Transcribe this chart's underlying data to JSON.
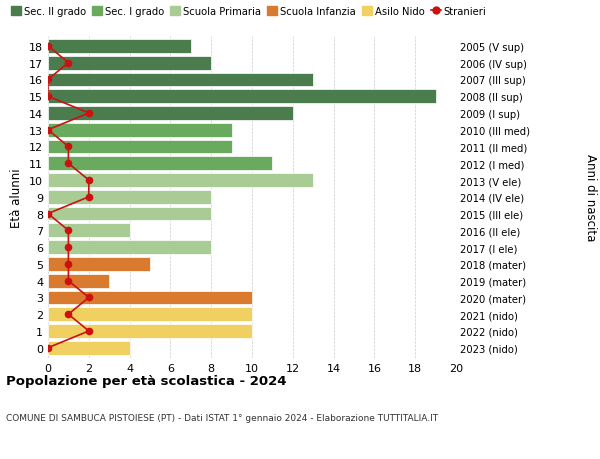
{
  "ages": [
    18,
    17,
    16,
    15,
    14,
    13,
    12,
    11,
    10,
    9,
    8,
    7,
    6,
    5,
    4,
    3,
    2,
    1,
    0
  ],
  "right_labels": [
    "2005 (V sup)",
    "2006 (IV sup)",
    "2007 (III sup)",
    "2008 (II sup)",
    "2009 (I sup)",
    "2010 (III med)",
    "2011 (II med)",
    "2012 (I med)",
    "2013 (V ele)",
    "2014 (IV ele)",
    "2015 (III ele)",
    "2016 (II ele)",
    "2017 (I ele)",
    "2018 (mater)",
    "2019 (mater)",
    "2020 (mater)",
    "2021 (nido)",
    "2022 (nido)",
    "2023 (nido)"
  ],
  "bar_values": [
    7,
    8,
    13,
    19,
    12,
    9,
    9,
    11,
    13,
    8,
    8,
    4,
    8,
    5,
    3,
    10,
    10,
    10,
    4
  ],
  "stranieri_values": [
    0,
    1,
    0,
    0,
    2,
    0,
    1,
    1,
    2,
    2,
    0,
    1,
    1,
    1,
    1,
    2,
    1,
    2,
    0
  ],
  "bar_colors": [
    "#4a7c4e",
    "#4a7c4e",
    "#4a7c4e",
    "#4a7c4e",
    "#4a7c4e",
    "#6aaa5e",
    "#6aaa5e",
    "#6aaa5e",
    "#a8cc94",
    "#a8cc94",
    "#a8cc94",
    "#a8cc94",
    "#a8cc94",
    "#d97a2e",
    "#d97a2e",
    "#d97a2e",
    "#f0d060",
    "#f0d060",
    "#f0d060"
  ],
  "legend_labels": [
    "Sec. II grado",
    "Sec. I grado",
    "Scuola Primaria",
    "Scuola Infanzia",
    "Asilo Nido",
    "Stranieri"
  ],
  "legend_colors": [
    "#4a7c4e",
    "#6aaa5e",
    "#a8cc94",
    "#d97a2e",
    "#f0d060",
    "#cc1111"
  ],
  "ylabel": "Età alunni",
  "ylabel_right": "Anni di nascita",
  "title": "Popolazione per età scolastica - 2024",
  "subtitle": "COMUNE DI SAMBUCA PISTOIESE (PT) - Dati ISTAT 1° gennaio 2024 - Elaborazione TUTTITALIA.IT",
  "xlim": [
    0,
    20
  ],
  "xticks": [
    0,
    2,
    4,
    6,
    8,
    10,
    12,
    14,
    16,
    18,
    20
  ],
  "background_color": "#ffffff",
  "stranieri_color": "#cc1111",
  "stranieri_linewidth": 1.2,
  "bar_height": 0.82
}
